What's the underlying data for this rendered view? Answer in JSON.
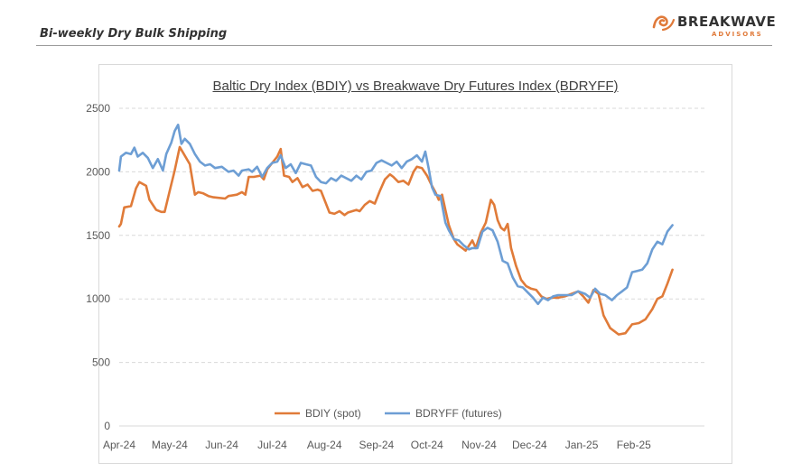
{
  "header": {
    "title": "Bi-weekly Dry Bulk Shipping",
    "logo_word": "BREAKWAVE",
    "logo_sub": "ADVISORS",
    "logo_color": "#e07a3a"
  },
  "chart_data": {
    "type": "line",
    "title": "Baltic Dry Index (BDIY) vs Breakwave Dry Futures Index (BDRYFF)",
    "xlabel": "",
    "ylabel": "",
    "ylim": [
      0,
      2500
    ],
    "yticks": [
      0,
      500,
      1000,
      1500,
      2000,
      2500
    ],
    "xlim": [
      "2024-04-01",
      "2025-03-15"
    ],
    "xticks": [
      {
        "label": "Apr-24",
        "date": "2024-04-01"
      },
      {
        "label": "May-24",
        "date": "2024-05-01"
      },
      {
        "label": "Jun-24",
        "date": "2024-06-01"
      },
      {
        "label": "Jul-24",
        "date": "2024-07-01"
      },
      {
        "label": "Aug-24",
        "date": "2024-08-01"
      },
      {
        "label": "Sep-24",
        "date": "2024-09-01"
      },
      {
        "label": "Oct-24",
        "date": "2024-10-01"
      },
      {
        "label": "Nov-24",
        "date": "2024-11-01"
      },
      {
        "label": "Dec-24",
        "date": "2024-12-01"
      },
      {
        "label": "Jan-25",
        "date": "2025-01-01"
      },
      {
        "label": "Feb-25",
        "date": "2025-02-01"
      }
    ],
    "grid": "horizontal dashed",
    "legend_position": "bottom",
    "series": [
      {
        "name": "BDIY (spot)",
        "color": "#e07b39",
        "points": [
          [
            "2024-04-01",
            1570
          ],
          [
            "2024-04-02",
            1590
          ],
          [
            "2024-04-04",
            1720
          ],
          [
            "2024-04-08",
            1730
          ],
          [
            "2024-04-11",
            1870
          ],
          [
            "2024-04-13",
            1920
          ],
          [
            "2024-04-17",
            1890
          ],
          [
            "2024-04-19",
            1780
          ],
          [
            "2024-04-23",
            1700
          ],
          [
            "2024-04-26",
            1685
          ],
          [
            "2024-04-28",
            1685
          ],
          [
            "2024-05-01",
            1850
          ],
          [
            "2024-05-04",
            2010
          ],
          [
            "2024-05-07",
            2195
          ],
          [
            "2024-05-09",
            2150
          ],
          [
            "2024-05-13",
            2060
          ],
          [
            "2024-05-15",
            1900
          ],
          [
            "2024-05-16",
            1820
          ],
          [
            "2024-05-18",
            1840
          ],
          [
            "2024-05-21",
            1830
          ],
          [
            "2024-05-24",
            1810
          ],
          [
            "2024-05-27",
            1800
          ],
          [
            "2024-06-03",
            1790
          ],
          [
            "2024-06-05",
            1810
          ],
          [
            "2024-06-10",
            1820
          ],
          [
            "2024-06-13",
            1840
          ],
          [
            "2024-06-15",
            1820
          ],
          [
            "2024-06-17",
            1960
          ],
          [
            "2024-06-20",
            1960
          ],
          [
            "2024-06-24",
            1970
          ],
          [
            "2024-06-26",
            1940
          ],
          [
            "2024-06-28",
            2020
          ],
          [
            "2024-07-04",
            2120
          ],
          [
            "2024-07-06",
            2180
          ],
          [
            "2024-07-08",
            1970
          ],
          [
            "2024-07-11",
            1960
          ],
          [
            "2024-07-13",
            1920
          ],
          [
            "2024-07-16",
            1950
          ],
          [
            "2024-07-19",
            1880
          ],
          [
            "2024-07-22",
            1900
          ],
          [
            "2024-07-25",
            1850
          ],
          [
            "2024-07-28",
            1860
          ],
          [
            "2024-07-30",
            1850
          ],
          [
            "2024-08-04",
            1680
          ],
          [
            "2024-08-07",
            1670
          ],
          [
            "2024-08-10",
            1690
          ],
          [
            "2024-08-13",
            1660
          ],
          [
            "2024-08-15",
            1680
          ],
          [
            "2024-08-20",
            1700
          ],
          [
            "2024-08-22",
            1690
          ],
          [
            "2024-08-25",
            1740
          ],
          [
            "2024-08-28",
            1770
          ],
          [
            "2024-08-31",
            1750
          ],
          [
            "2024-09-03",
            1850
          ],
          [
            "2024-09-06",
            1940
          ],
          [
            "2024-09-09",
            1980
          ],
          [
            "2024-09-11",
            1960
          ],
          [
            "2024-09-14",
            1920
          ],
          [
            "2024-09-17",
            1930
          ],
          [
            "2024-09-20",
            1900
          ],
          [
            "2024-09-23",
            2000
          ],
          [
            "2024-09-25",
            2040
          ],
          [
            "2024-09-28",
            2030
          ],
          [
            "2024-10-01",
            1970
          ],
          [
            "2024-10-04",
            1890
          ],
          [
            "2024-10-06",
            1840
          ],
          [
            "2024-10-08",
            1780
          ],
          [
            "2024-10-10",
            1820
          ],
          [
            "2024-10-12",
            1700
          ],
          [
            "2024-10-14",
            1580
          ],
          [
            "2024-10-17",
            1470
          ],
          [
            "2024-10-19",
            1430
          ],
          [
            "2024-10-21",
            1410
          ],
          [
            "2024-10-24",
            1380
          ],
          [
            "2024-10-26",
            1420
          ],
          [
            "2024-10-28",
            1460
          ],
          [
            "2024-10-30",
            1400
          ],
          [
            "2024-11-02",
            1520
          ],
          [
            "2024-11-05",
            1600
          ],
          [
            "2024-11-08",
            1780
          ],
          [
            "2024-11-10",
            1740
          ],
          [
            "2024-11-12",
            1620
          ],
          [
            "2024-11-14",
            1560
          ],
          [
            "2024-11-16",
            1540
          ],
          [
            "2024-11-18",
            1590
          ],
          [
            "2024-11-20",
            1400
          ],
          [
            "2024-11-23",
            1260
          ],
          [
            "2024-11-26",
            1150
          ],
          [
            "2024-11-29",
            1100
          ],
          [
            "2024-12-02",
            1080
          ],
          [
            "2024-12-05",
            1070
          ],
          [
            "2024-12-08",
            1020
          ],
          [
            "2024-12-11",
            1000
          ],
          [
            "2024-12-14",
            1010
          ],
          [
            "2024-12-18",
            1010
          ],
          [
            "2024-12-22",
            1020
          ],
          [
            "2024-12-26",
            1040
          ],
          [
            "2024-12-30",
            1060
          ],
          [
            "2025-01-02",
            1020
          ],
          [
            "2025-01-05",
            970
          ],
          [
            "2025-01-08",
            1070
          ],
          [
            "2025-01-11",
            1040
          ],
          [
            "2025-01-14",
            870
          ],
          [
            "2025-01-18",
            770
          ],
          [
            "2025-01-21",
            740
          ],
          [
            "2025-01-23",
            720
          ],
          [
            "2025-01-27",
            730
          ],
          [
            "2025-01-31",
            800
          ],
          [
            "2025-02-04",
            810
          ],
          [
            "2025-02-08",
            840
          ],
          [
            "2025-02-12",
            920
          ],
          [
            "2025-02-15",
            1000
          ],
          [
            "2025-02-18",
            1020
          ],
          [
            "2025-02-21",
            1120
          ],
          [
            "2025-02-24",
            1230
          ]
        ]
      },
      {
        "name": "BDRYFF (futures)",
        "color": "#6d9ed4",
        "points": [
          [
            "2024-04-01",
            2010
          ],
          [
            "2024-04-02",
            2120
          ],
          [
            "2024-04-05",
            2150
          ],
          [
            "2024-04-08",
            2140
          ],
          [
            "2024-04-10",
            2190
          ],
          [
            "2024-04-12",
            2120
          ],
          [
            "2024-04-15",
            2150
          ],
          [
            "2024-04-18",
            2110
          ],
          [
            "2024-04-21",
            2030
          ],
          [
            "2024-04-24",
            2100
          ],
          [
            "2024-04-27",
            2010
          ],
          [
            "2024-04-29",
            2140
          ],
          [
            "2024-05-02",
            2230
          ],
          [
            "2024-05-04",
            2320
          ],
          [
            "2024-05-06",
            2370
          ],
          [
            "2024-05-08",
            2220
          ],
          [
            "2024-05-10",
            2260
          ],
          [
            "2024-05-13",
            2220
          ],
          [
            "2024-05-16",
            2140
          ],
          [
            "2024-05-19",
            2080
          ],
          [
            "2024-05-22",
            2050
          ],
          [
            "2024-05-25",
            2060
          ],
          [
            "2024-05-28",
            2030
          ],
          [
            "2024-06-01",
            2040
          ],
          [
            "2024-06-05",
            2000
          ],
          [
            "2024-06-08",
            2010
          ],
          [
            "2024-06-11",
            1970
          ],
          [
            "2024-06-13",
            2010
          ],
          [
            "2024-06-17",
            2020
          ],
          [
            "2024-06-19",
            2000
          ],
          [
            "2024-06-22",
            2040
          ],
          [
            "2024-06-25",
            1960
          ],
          [
            "2024-06-28",
            2030
          ],
          [
            "2024-07-01",
            2070
          ],
          [
            "2024-07-04",
            2080
          ],
          [
            "2024-07-06",
            2130
          ],
          [
            "2024-07-09",
            2030
          ],
          [
            "2024-07-12",
            2060
          ],
          [
            "2024-07-15",
            1990
          ],
          [
            "2024-07-18",
            2070
          ],
          [
            "2024-07-21",
            2060
          ],
          [
            "2024-07-24",
            2050
          ],
          [
            "2024-07-27",
            1960
          ],
          [
            "2024-07-30",
            1920
          ],
          [
            "2024-08-02",
            1910
          ],
          [
            "2024-08-05",
            1950
          ],
          [
            "2024-08-08",
            1930
          ],
          [
            "2024-08-11",
            1970
          ],
          [
            "2024-08-14",
            1950
          ],
          [
            "2024-08-17",
            1930
          ],
          [
            "2024-08-20",
            1970
          ],
          [
            "2024-08-23",
            1940
          ],
          [
            "2024-08-26",
            2000
          ],
          [
            "2024-08-29",
            2010
          ],
          [
            "2024-09-01",
            2070
          ],
          [
            "2024-09-04",
            2090
          ],
          [
            "2024-09-07",
            2070
          ],
          [
            "2024-09-10",
            2050
          ],
          [
            "2024-09-13",
            2080
          ],
          [
            "2024-09-16",
            2030
          ],
          [
            "2024-09-19",
            2080
          ],
          [
            "2024-09-22",
            2100
          ],
          [
            "2024-09-25",
            2130
          ],
          [
            "2024-09-28",
            2080
          ],
          [
            "2024-09-30",
            2160
          ],
          [
            "2024-10-02",
            2030
          ],
          [
            "2024-10-04",
            1880
          ],
          [
            "2024-10-06",
            1820
          ],
          [
            "2024-10-09",
            1810
          ],
          [
            "2024-10-12",
            1600
          ],
          [
            "2024-10-14",
            1540
          ],
          [
            "2024-10-17",
            1470
          ],
          [
            "2024-10-20",
            1460
          ],
          [
            "2024-10-23",
            1420
          ],
          [
            "2024-10-26",
            1390
          ],
          [
            "2024-10-28",
            1400
          ],
          [
            "2024-10-31",
            1400
          ],
          [
            "2024-11-03",
            1530
          ],
          [
            "2024-11-06",
            1560
          ],
          [
            "2024-11-09",
            1540
          ],
          [
            "2024-11-12",
            1450
          ],
          [
            "2024-11-15",
            1300
          ],
          [
            "2024-11-18",
            1280
          ],
          [
            "2024-11-21",
            1170
          ],
          [
            "2024-11-24",
            1100
          ],
          [
            "2024-11-27",
            1090
          ],
          [
            "2024-11-30",
            1050
          ],
          [
            "2024-12-03",
            1010
          ],
          [
            "2024-12-06",
            960
          ],
          [
            "2024-12-09",
            1010
          ],
          [
            "2024-12-12",
            990
          ],
          [
            "2024-12-15",
            1020
          ],
          [
            "2024-12-18",
            1030
          ],
          [
            "2024-12-22",
            1030
          ],
          [
            "2024-12-26",
            1030
          ],
          [
            "2024-12-30",
            1060
          ],
          [
            "2025-01-03",
            1040
          ],
          [
            "2025-01-06",
            1010
          ],
          [
            "2025-01-09",
            1080
          ],
          [
            "2025-01-12",
            1040
          ],
          [
            "2025-01-15",
            1030
          ],
          [
            "2025-01-19",
            990
          ],
          [
            "2025-01-22",
            1030
          ],
          [
            "2025-01-25",
            1060
          ],
          [
            "2025-01-28",
            1090
          ],
          [
            "2025-01-31",
            1210
          ],
          [
            "2025-02-03",
            1220
          ],
          [
            "2025-02-06",
            1230
          ],
          [
            "2025-02-09",
            1280
          ],
          [
            "2025-02-12",
            1390
          ],
          [
            "2025-02-15",
            1450
          ],
          [
            "2025-02-18",
            1430
          ],
          [
            "2025-02-21",
            1530
          ],
          [
            "2025-02-24",
            1580
          ]
        ]
      }
    ]
  }
}
